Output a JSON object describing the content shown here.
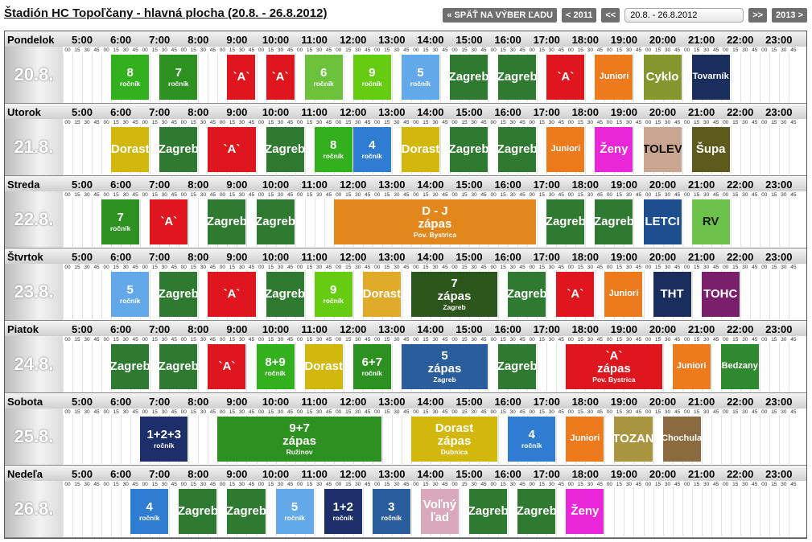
{
  "header": {
    "title": "Štadión HC Topoľčany - hlavná plocha (20.8. - 26.8.2012)",
    "buttons": [
      "« SPÄŤ NA VÝBER ĽADU",
      "< 2011",
      "<<"
    ],
    "week_select": "20.8. - 26.8.2012",
    "buttons_after": [
      ">>",
      "2013 >"
    ]
  },
  "hours": [
    "5:00",
    "6:00",
    "7:00",
    "8:00",
    "9:00",
    "10:00",
    "11:00",
    "12:00",
    "13:00",
    "14:00",
    "15:00",
    "16:00",
    "17:00",
    "18:00",
    "19:00",
    "20:00",
    "21:00",
    "22:00",
    "23:00"
  ],
  "quarters": [
    "00",
    "15",
    "30",
    "45"
  ],
  "days": [
    {
      "name": "Pondelok",
      "date": "20.8.",
      "blocks": [
        {
          "lines": [
            "8",
            "ročník"
          ],
          "start": 6.25,
          "end": 7.25,
          "color": "#33b01e"
        },
        {
          "lines": [
            "7",
            "ročník"
          ],
          "start": 7.5,
          "end": 8.5,
          "color": "#2d9121"
        },
        {
          "lines": [
            "`A`"
          ],
          "start": 9.25,
          "end": 10,
          "color": "#e0161e"
        },
        {
          "lines": [
            "`A`"
          ],
          "start": 10.25,
          "end": 11,
          "color": "#e0161e"
        },
        {
          "lines": [
            "6",
            "ročník"
          ],
          "start": 11.25,
          "end": 12.25,
          "color": "#6cc23a"
        },
        {
          "lines": [
            "9",
            "ročník"
          ],
          "start": 12.5,
          "end": 13.5,
          "color": "#66cc11"
        },
        {
          "lines": [
            "5",
            "ročník"
          ],
          "start": 13.75,
          "end": 14.75,
          "color": "#63a9ea"
        },
        {
          "lines": [
            "Zagreb"
          ],
          "start": 15,
          "end": 16,
          "color": "#2e7a30"
        },
        {
          "lines": [
            "Zagreb"
          ],
          "start": 16.25,
          "end": 17.25,
          "color": "#2e7a30"
        },
        {
          "lines": [
            "`A`"
          ],
          "start": 17.5,
          "end": 18.5,
          "color": "#e0161e"
        },
        {
          "lines": [
            "Juniori"
          ],
          "start": 18.75,
          "end": 19.75,
          "color": "#ee7a1e"
        },
        {
          "lines": [
            "Cyklo"
          ],
          "start": 20,
          "end": 21,
          "color": "#86962e"
        },
        {
          "lines": [
            "Tovarník"
          ],
          "start": 21.25,
          "end": 22.25,
          "color": "#1a2e5e"
        }
      ]
    },
    {
      "name": "Utorok",
      "date": "21.8.",
      "blocks": [
        {
          "lines": [
            "Dorast"
          ],
          "start": 6.25,
          "end": 7.25,
          "color": "#d2b80c"
        },
        {
          "lines": [
            "Zagreb"
          ],
          "start": 7.5,
          "end": 8.5,
          "color": "#2e7a30"
        },
        {
          "lines": [
            "`A`"
          ],
          "start": 8.75,
          "end": 10,
          "color": "#e0161e"
        },
        {
          "lines": [
            "Zagreb"
          ],
          "start": 10.25,
          "end": 11.25,
          "color": "#2e7a30"
        },
        {
          "lines": [
            "8",
            "ročník"
          ],
          "start": 11.5,
          "end": 12.5,
          "color": "#33b01e"
        },
        {
          "lines": [
            "4",
            "ročník"
          ],
          "start": 12.5,
          "end": 13.5,
          "color": "#2f7dd3"
        },
        {
          "lines": [
            "Dorast"
          ],
          "start": 13.75,
          "end": 14.75,
          "color": "#d2b80c"
        },
        {
          "lines": [
            "Zagreb"
          ],
          "start": 15,
          "end": 16,
          "color": "#2e7a30"
        },
        {
          "lines": [
            "Zagreb"
          ],
          "start": 16.25,
          "end": 17.25,
          "color": "#2e7a30"
        },
        {
          "lines": [
            "Juniori"
          ],
          "start": 17.5,
          "end": 18.5,
          "color": "#ee7a1e"
        },
        {
          "lines": [
            "Ženy"
          ],
          "start": 18.75,
          "end": 19.75,
          "color": "#ea27d8"
        },
        {
          "lines": [
            "TOLEV"
          ],
          "start": 20,
          "end": 21,
          "color": "#c9a592",
          "text_color": "#111"
        },
        {
          "lines": [
            "Šupa"
          ],
          "start": 21.25,
          "end": 22.25,
          "color": "#5e5a1c"
        }
      ]
    },
    {
      "name": "Streda",
      "date": "22.8.",
      "blocks": [
        {
          "lines": [
            "7",
            "ročník"
          ],
          "start": 6,
          "end": 7,
          "color": "#2d9121"
        },
        {
          "lines": [
            "`A`"
          ],
          "start": 7.25,
          "end": 8.25,
          "color": "#e0161e"
        },
        {
          "lines": [
            "Zagreb"
          ],
          "start": 8.75,
          "end": 9.75,
          "color": "#2e7a30"
        },
        {
          "lines": [
            "Zagreb"
          ],
          "start": 10,
          "end": 11,
          "color": "#2e7a30"
        },
        {
          "lines": [
            "D - J",
            "zápas",
            "Pov. Bystrica"
          ],
          "start": 12,
          "end": 17.25,
          "color": "#e2871b"
        },
        {
          "lines": [
            "Zagreb"
          ],
          "start": 17.5,
          "end": 18.5,
          "color": "#2e7a30"
        },
        {
          "lines": [
            "Zagreb"
          ],
          "start": 18.75,
          "end": 19.75,
          "color": "#2e7a30"
        },
        {
          "lines": [
            "LETCI"
          ],
          "start": 20,
          "end": 21,
          "color": "#1d4f8f"
        },
        {
          "lines": [
            "RV"
          ],
          "start": 21.25,
          "end": 22.25,
          "color": "#6cc24a",
          "text_color": "#1a1a1a"
        }
      ]
    },
    {
      "name": "Štvrtok",
      "date": "23.8.",
      "blocks": [
        {
          "lines": [
            "5",
            "ročník"
          ],
          "start": 6.25,
          "end": 7.25,
          "color": "#63a9ea"
        },
        {
          "lines": [
            "Zagreb"
          ],
          "start": 7.5,
          "end": 8.5,
          "color": "#2e7a30"
        },
        {
          "lines": [
            "`A`"
          ],
          "start": 8.75,
          "end": 10,
          "color": "#e0161e"
        },
        {
          "lines": [
            "Zagreb"
          ],
          "start": 10.25,
          "end": 11.25,
          "color": "#2e7a30"
        },
        {
          "lines": [
            "9",
            "ročník"
          ],
          "start": 11.5,
          "end": 12.5,
          "color": "#66cc11"
        },
        {
          "lines": [
            "Dorast"
          ],
          "start": 12.75,
          "end": 13.75,
          "color": "#e0aa2a"
        },
        {
          "lines": [
            "7",
            "zápas",
            "Zagreb"
          ],
          "start": 14,
          "end": 16.25,
          "color": "#2c561c"
        },
        {
          "lines": [
            "Zagreb"
          ],
          "start": 16.5,
          "end": 17.5,
          "color": "#2e7a30"
        },
        {
          "lines": [
            "`A`"
          ],
          "start": 17.75,
          "end": 18.75,
          "color": "#e0161e"
        },
        {
          "lines": [
            "Juniori"
          ],
          "start": 19,
          "end": 20,
          "color": "#ee7a1e"
        },
        {
          "lines": [
            "THT"
          ],
          "start": 20.25,
          "end": 21.25,
          "color": "#1a2e5e"
        },
        {
          "lines": [
            "TOHC"
          ],
          "start": 21.5,
          "end": 22.5,
          "color": "#7a1f6c"
        }
      ]
    },
    {
      "name": "Piatok",
      "date": "24.8.",
      "blocks": [
        {
          "lines": [
            "Zagreb"
          ],
          "start": 6.25,
          "end": 7.25,
          "color": "#2e7a30"
        },
        {
          "lines": [
            "Zagreb"
          ],
          "start": 7.5,
          "end": 8.5,
          "color": "#2e7a30"
        },
        {
          "lines": [
            "`A`"
          ],
          "start": 8.75,
          "end": 9.75,
          "color": "#e0161e"
        },
        {
          "lines": [
            "8+9",
            "ročník"
          ],
          "start": 10,
          "end": 11,
          "color": "#33b01e"
        },
        {
          "lines": [
            "Dorast"
          ],
          "start": 11.25,
          "end": 12.25,
          "color": "#d2b80c"
        },
        {
          "lines": [
            "6+7",
            "ročník"
          ],
          "start": 12.5,
          "end": 13.5,
          "color": "#2d9121"
        },
        {
          "lines": [
            "5",
            "zápas",
            "Zagreb"
          ],
          "start": 13.75,
          "end": 16,
          "color": "#2a5d9c"
        },
        {
          "lines": [
            "Zagreb"
          ],
          "start": 16.25,
          "end": 17.25,
          "color": "#2e7a30"
        },
        {
          "lines": [
            "`A`",
            "zápas",
            "Pov. Bystrica"
          ],
          "start": 18,
          "end": 20.5,
          "color": "#e0161e"
        },
        {
          "lines": [
            "Juniori"
          ],
          "start": 20.75,
          "end": 21.75,
          "color": "#ee7a1e"
        },
        {
          "lines": [
            "Bedzany"
          ],
          "start": 22,
          "end": 23,
          "color": "#2f8a2f"
        }
      ]
    },
    {
      "name": "Sobota",
      "date": "25.8.",
      "blocks": [
        {
          "lines": [
            "1+2+3",
            "ročník"
          ],
          "start": 7,
          "end": 8.25,
          "color": "#1c2f6a"
        },
        {
          "lines": [
            "9+7",
            "zápas",
            "Ružinov"
          ],
          "start": 9,
          "end": 13.25,
          "color": "#2d9121"
        },
        {
          "lines": [
            "Dorast",
            "zápas",
            "Dubnica"
          ],
          "start": 14,
          "end": 16.25,
          "color": "#d2b80c"
        },
        {
          "lines": [
            "4",
            "ročník"
          ],
          "start": 16.5,
          "end": 17.75,
          "color": "#2f7dd3"
        },
        {
          "lines": [
            "Juniori"
          ],
          "start": 18,
          "end": 19,
          "color": "#ee7a1e"
        },
        {
          "lines": [
            "TOZAN"
          ],
          "start": 19.25,
          "end": 20.25,
          "color": "#a99440"
        },
        {
          "lines": [
            "Chochula"
          ],
          "start": 20.5,
          "end": 21.5,
          "color": "#8a6a3e"
        }
      ]
    },
    {
      "name": "Nedeľa",
      "date": "26.8.",
      "blocks": [
        {
          "lines": [
            "4",
            "ročník"
          ],
          "start": 6.75,
          "end": 7.75,
          "color": "#2f7dd3"
        },
        {
          "lines": [
            "Zagreb"
          ],
          "start": 8,
          "end": 9,
          "color": "#2e7a30"
        },
        {
          "lines": [
            "Zagreb"
          ],
          "start": 9.25,
          "end": 10.25,
          "color": "#2e7a30"
        },
        {
          "lines": [
            "5",
            "ročník"
          ],
          "start": 10.5,
          "end": 11.5,
          "color": "#63a9ea"
        },
        {
          "lines": [
            "1+2",
            "ročník"
          ],
          "start": 11.75,
          "end": 12.75,
          "color": "#1c2f6a"
        },
        {
          "lines": [
            "3",
            "ročník"
          ],
          "start": 13,
          "end": 14,
          "color": "#2a5d9c"
        },
        {
          "lines": [
            "Voľný",
            "ľad"
          ],
          "start": 14.25,
          "end": 15.25,
          "color": "#d9a8bb"
        },
        {
          "lines": [
            "Zagreb"
          ],
          "start": 15.5,
          "end": 16.5,
          "color": "#2e7a30"
        },
        {
          "lines": [
            "Zagreb"
          ],
          "start": 16.75,
          "end": 17.75,
          "color": "#2e7a30"
        },
        {
          "lines": [
            "Ženy"
          ],
          "start": 18,
          "end": 19,
          "color": "#ea27d8"
        }
      ]
    }
  ]
}
